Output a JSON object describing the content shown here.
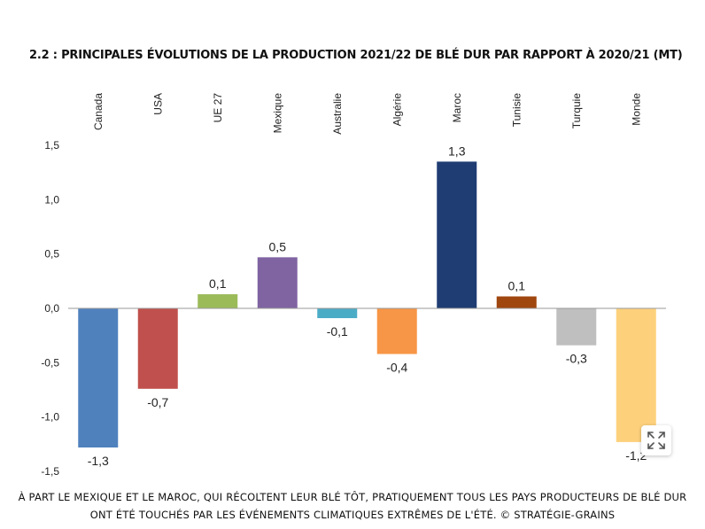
{
  "title": "2.2 : PRINCIPALES ÉVOLUTIONS DE LA PRODUCTION 2021/22 DE BLÉ DUR PAR RAPPORT À 2020/21 (MT)",
  "caption": {
    "line1": "À PART LE MEXIQUE ET LE MAROC, QUI RÉCOLTENT LEUR BLÉ TÔT, PRATIQUEMENT TOUS LES PAYS PRODUCTEURS DE BLÉ DUR",
    "line2": "ONT ÉTÉ TOUCHÉS PAR LES ÉVÉNEMENTS CLIMATIQUES EXTRÊMES DE L'ÉTÉ. © STRATÉGIE-GRAINS"
  },
  "expand_button": {
    "icon": "expand-arrows-icon"
  },
  "chart_data": {
    "type": "bar",
    "title": "2.2 : PRINCIPALES ÉVOLUTIONS DE LA PRODUCTION 2021/22 DE BLÉ DUR PAR RAPPORT À 2020/21 (MT)",
    "categories": [
      "Canada",
      "USA",
      "UE 27",
      "Mexique",
      "Australie",
      "Algérie",
      "Maroc",
      "Tunisie",
      "Turquie",
      "Monde"
    ],
    "values": [
      -1.28,
      -0.74,
      0.13,
      0.47,
      -0.09,
      -0.42,
      1.35,
      0.11,
      -0.34,
      -1.23
    ],
    "data_labels": [
      "-1,3",
      "-0,7",
      "0,1",
      "0,5",
      "-0,1",
      "-0,4",
      "1,3",
      "0,1",
      "-0,3",
      "-1,2"
    ],
    "colors": [
      "#4f81bd",
      "#c0504d",
      "#9bbb59",
      "#8064a2",
      "#4bacc6",
      "#f79646",
      "#1f3d73",
      "#a0460f",
      "#bfbfbf",
      "#fdd17c"
    ],
    "ylim": [
      -1.5,
      1.5
    ],
    "yticks": [
      1.5,
      1.0,
      0.5,
      0.0,
      -0.5,
      -1.0,
      -1.5
    ],
    "ytick_labels": [
      "1,5",
      "1,0",
      "0,5",
      "0,0",
      "-0,5",
      "-1,0",
      "-1,5"
    ],
    "xlabel": "",
    "ylabel": "",
    "category_labels_position": "top-rotated",
    "grid": false,
    "legend": "none"
  }
}
